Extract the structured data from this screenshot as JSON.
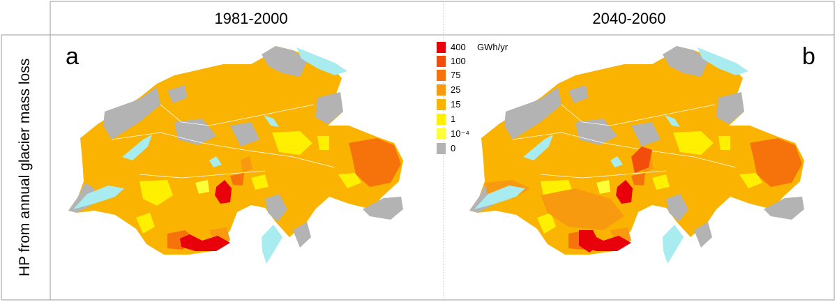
{
  "columns": [
    "1981-2000",
    "2040-2060"
  ],
  "row_label": "HP from annual glacier mass loss",
  "panels": [
    {
      "letter": "a",
      "period": "1981-2000"
    },
    {
      "letter": "b",
      "period": "2040-2060"
    }
  ],
  "legend": {
    "unit": "GWh/yr",
    "items": [
      {
        "label": "400",
        "color": "#e8000b"
      },
      {
        "label": "100",
        "color": "#f24d0c"
      },
      {
        "label": "75",
        "color": "#f5730a"
      },
      {
        "label": "25",
        "color": "#f79a0f"
      },
      {
        "label": "15",
        "color": "#f9b300"
      },
      {
        "label": "1",
        "color": "#ffef00"
      },
      {
        "label": "10⁻⁴",
        "color": "#ffff3a"
      },
      {
        "label": "0",
        "color": "#b3b3b3"
      }
    ]
  },
  "colors": {
    "base": "#f9b300",
    "no_glacier": "#b3b3b3",
    "lake": "#a8ecf0",
    "border": "#ffffff"
  }
}
